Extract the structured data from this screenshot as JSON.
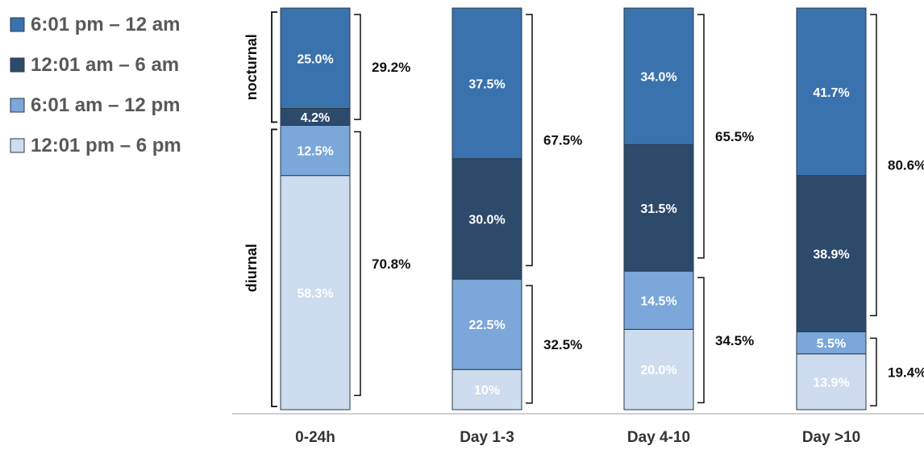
{
  "chart_data": {
    "type": "bar",
    "stacked": true,
    "normalized": true,
    "categories": [
      "0-24h",
      "Day 1-3",
      "Day 4-10",
      "Day >10"
    ],
    "series": [
      {
        "name": "12:01 pm – 6 pm",
        "color": "#cddcef",
        "values": [
          58.3,
          10,
          20.0,
          13.9
        ],
        "labels": [
          "58.3%",
          "10%",
          "20.0%",
          "13.9%"
        ]
      },
      {
        "name": "6:01 am – 12 pm",
        "color": "#7ba7da",
        "values": [
          12.5,
          22.5,
          14.5,
          5.5
        ],
        "labels": [
          "12.5%",
          "22.5%",
          "14.5%",
          "5.5%"
        ]
      },
      {
        "name": "12:01 am – 6 am",
        "color": "#2e4a6b",
        "values": [
          4.2,
          30.0,
          31.5,
          38.9
        ],
        "labels": [
          "4.2%",
          "30.0%",
          "31.5%",
          "38.9%"
        ]
      },
      {
        "name": "6:01 pm – 12 am",
        "color": "#3a72ad",
        "values": [
          25.0,
          37.5,
          34.0,
          41.7
        ],
        "labels": [
          "25.0%",
          "37.5%",
          "34.0%",
          "41.7%"
        ]
      }
    ],
    "legend": {
      "placement": "top-left",
      "entries": [
        "6:01 pm – 12 am",
        "12:01 am – 6 am",
        "6:01 am – 12 pm",
        "12:01 pm – 6 pm"
      ]
    },
    "brackets": [
      {
        "category": 0,
        "series": [
          2,
          3
        ],
        "label": "29.2%"
      },
      {
        "category": 0,
        "series": [
          0,
          1
        ],
        "label": "70.8%"
      },
      {
        "category": 1,
        "series": [
          2,
          3
        ],
        "label": "67.5%"
      },
      {
        "category": 1,
        "series": [
          0,
          1
        ],
        "label": "32.5%"
      },
      {
        "category": 2,
        "series": [
          2,
          3
        ],
        "label": "65.5%"
      },
      {
        "category": 2,
        "series": [
          0,
          1
        ],
        "label": "34.5%"
      },
      {
        "category": 3,
        "series": [
          2,
          3
        ],
        "label": "80.6%"
      },
      {
        "category": 3,
        "series": [
          0,
          1
        ],
        "label": "19.4%"
      }
    ],
    "group_labels": [
      {
        "text": "nocturnal",
        "series": [
          2,
          3
        ]
      },
      {
        "text": "diurnal",
        "series": [
          0,
          1
        ]
      }
    ],
    "ylim": [
      0,
      100
    ],
    "grid": false
  }
}
